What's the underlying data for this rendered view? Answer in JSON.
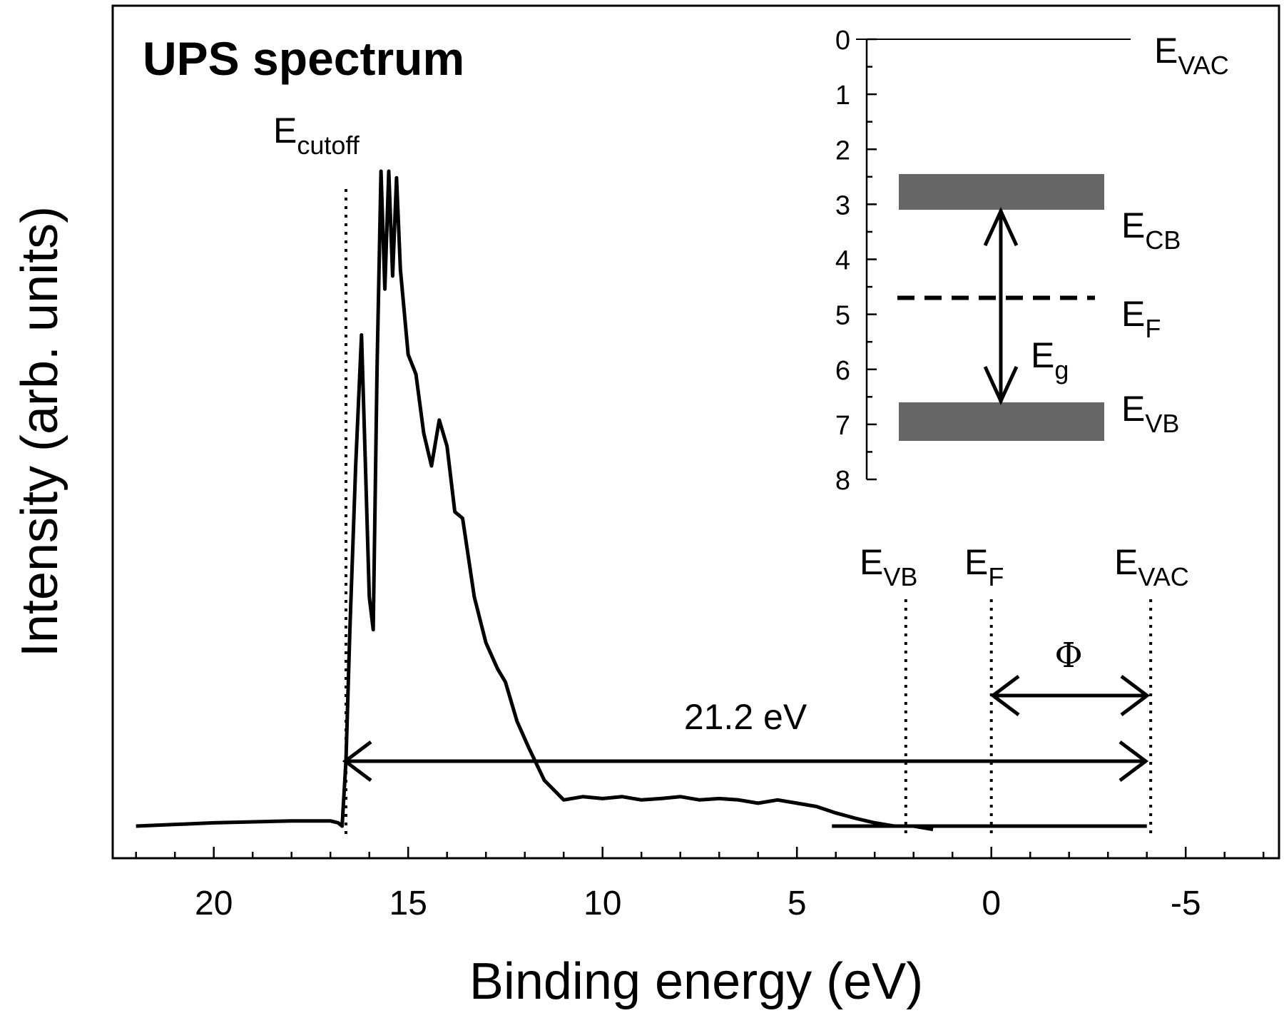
{
  "chart_data": {
    "type": "line",
    "title": "UPS spectrum",
    "xlabel": "Binding energy (eV)",
    "ylabel": "Intensity (arb. units)",
    "xlim": [
      22.6,
      -7.4
    ],
    "x_ticks": [
      "20",
      "15",
      "10",
      "5",
      "0",
      "-5"
    ],
    "x_tick_values": [
      20,
      15,
      10,
      5,
      0,
      -5
    ],
    "series": [
      {
        "x": [
          22.0,
          20.0,
          18.0,
          17.0,
          16.8,
          16.7,
          16.6,
          16.5,
          16.35,
          16.2,
          16.1,
          16.0,
          15.9,
          15.8,
          15.7,
          15.6,
          15.5,
          15.4,
          15.3,
          15.2,
          15.0,
          14.8,
          14.6,
          14.4,
          14.2,
          14.0,
          13.8,
          13.6,
          13.3,
          13.0,
          12.7,
          12.5,
          12.2,
          11.9,
          11.5,
          11.0,
          10.5,
          10.0,
          9.5,
          9.0,
          8.5,
          8.0,
          7.5,
          7.0,
          6.5,
          6.0,
          5.5,
          5.0,
          4.5,
          4.0,
          3.5,
          3.0,
          2.5,
          2.0,
          1.5
        ],
        "y": [
          0.0,
          0.005,
          0.008,
          0.008,
          0.005,
          0.0,
          0.1,
          0.3,
          0.55,
          0.75,
          0.55,
          0.35,
          0.3,
          0.7,
          1.0,
          0.82,
          1.0,
          0.84,
          0.99,
          0.85,
          0.72,
          0.69,
          0.6,
          0.55,
          0.62,
          0.58,
          0.48,
          0.47,
          0.35,
          0.28,
          0.24,
          0.22,
          0.16,
          0.12,
          0.07,
          0.04,
          0.045,
          0.042,
          0.045,
          0.04,
          0.042,
          0.045,
          0.04,
          0.042,
          0.04,
          0.035,
          0.04,
          0.035,
          0.03,
          0.02,
          0.012,
          0.005,
          0.0,
          0.0,
          -0.005
        ]
      }
    ],
    "vlines_x": [
      16.6,
      2.2,
      0.0,
      -4.1
    ],
    "baseline_segment_x": [
      4.1,
      -4.0
    ],
    "annotations": {
      "cutoff_main": "E",
      "cutoff_sub": "cutoff",
      "evb_main": "E",
      "evb_sub": "VB",
      "ef_main": "E",
      "ef_sub": "F",
      "evac_main": "E",
      "evac_sub": "VAC",
      "phi": "Φ",
      "span": "21.2 eV"
    },
    "inset": {
      "y_ticks": [
        "0",
        "1",
        "2",
        "3",
        "4",
        "5",
        "6",
        "7",
        "8"
      ],
      "y_tick_values": [
        0,
        1,
        2,
        3,
        4,
        5,
        6,
        7,
        8
      ],
      "ylim": [
        0,
        8
      ],
      "vac_level": 0,
      "cb_band": [
        2.45,
        3.1
      ],
      "vb_band": [
        6.6,
        7.3
      ],
      "fermi_level": 4.7,
      "gap_arrow": [
        3.1,
        6.6
      ],
      "labels": {
        "evac_main": "E",
        "evac_sub": "VAC",
        "ecb_main": "E",
        "ecb_sub": "CB",
        "ef_main": "E",
        "ef_sub": "F",
        "evb_main": "E",
        "evb_sub": "VB",
        "eg_main": "E",
        "eg_sub": "g"
      },
      "band_color": "#666666"
    },
    "grid": false,
    "legend": "none",
    "line_color": "#000000"
  }
}
